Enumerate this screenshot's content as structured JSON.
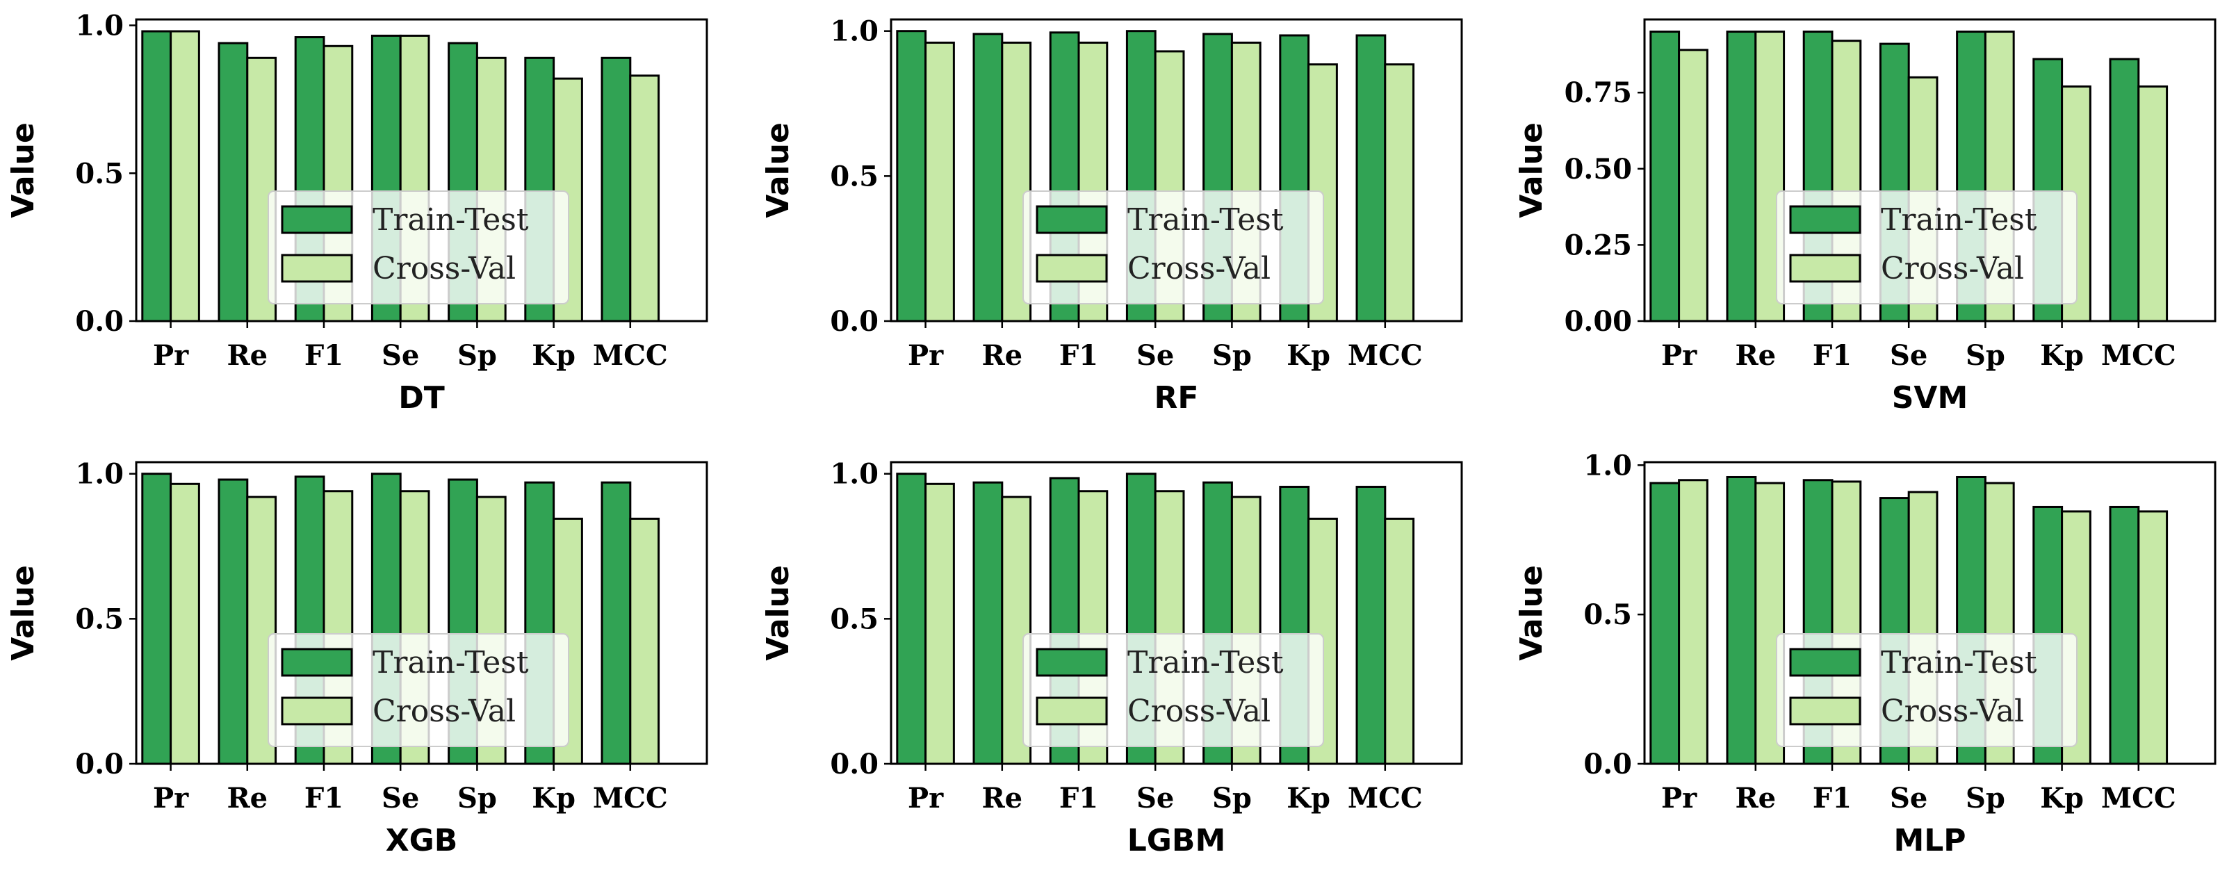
{
  "chart_data": [
    {
      "type": "bar",
      "title": "",
      "xlabel": "DT",
      "ylabel": "Value",
      "categories": [
        "Pr",
        "Re",
        "F1",
        "Se",
        "Sp",
        "Kp",
        "MCC"
      ],
      "series": [
        {
          "name": "Train-Test",
          "values": [
            0.98,
            0.94,
            0.96,
            0.965,
            0.94,
            0.89,
            0.89
          ]
        },
        {
          "name": "Cross-Val",
          "values": [
            0.98,
            0.89,
            0.93,
            0.965,
            0.89,
            0.82,
            0.83
          ]
        }
      ],
      "ylim": [
        0,
        1.02
      ],
      "yticks": [
        "0.0",
        "0.5",
        "1.0"
      ],
      "ytick_values": [
        0,
        0.5,
        1.0
      ],
      "legend": "lower-center"
    },
    {
      "type": "bar",
      "title": "",
      "xlabel": "RF",
      "ylabel": "Value",
      "categories": [
        "Pr",
        "Re",
        "F1",
        "Se",
        "Sp",
        "Kp",
        "MCC"
      ],
      "series": [
        {
          "name": "Train-Test",
          "values": [
            1.0,
            0.99,
            0.995,
            1.0,
            0.99,
            0.985,
            0.985
          ]
        },
        {
          "name": "Cross-Val",
          "values": [
            0.96,
            0.96,
            0.96,
            0.93,
            0.96,
            0.885,
            0.885
          ]
        }
      ],
      "ylim": [
        0,
        1.04
      ],
      "yticks": [
        "0.0",
        "0.5",
        "1.0"
      ],
      "ytick_values": [
        0,
        0.5,
        1.0
      ],
      "legend": "lower-center"
    },
    {
      "type": "bar",
      "title": "",
      "xlabel": "SVM",
      "ylabel": "Value",
      "categories": [
        "Pr",
        "Re",
        "F1",
        "Se",
        "Sp",
        "Kp",
        "MCC"
      ],
      "series": [
        {
          "name": "Train-Test",
          "values": [
            0.95,
            0.95,
            0.95,
            0.91,
            0.95,
            0.86,
            0.86
          ]
        },
        {
          "name": "Cross-Val",
          "values": [
            0.89,
            0.95,
            0.92,
            0.8,
            0.95,
            0.77,
            0.77
          ]
        }
      ],
      "ylim": [
        0,
        0.99
      ],
      "yticks": [
        "0.00",
        "0.25",
        "0.50",
        "0.75"
      ],
      "ytick_values": [
        0,
        0.25,
        0.5,
        0.75
      ],
      "legend": "lower-center"
    },
    {
      "type": "bar",
      "title": "",
      "xlabel": "XGB",
      "ylabel": "Value",
      "categories": [
        "Pr",
        "Re",
        "F1",
        "Se",
        "Sp",
        "Kp",
        "MCC"
      ],
      "series": [
        {
          "name": "Train-Test",
          "values": [
            1.0,
            0.98,
            0.99,
            1.0,
            0.98,
            0.97,
            0.97
          ]
        },
        {
          "name": "Cross-Val",
          "values": [
            0.965,
            0.92,
            0.94,
            0.94,
            0.92,
            0.845,
            0.845
          ]
        }
      ],
      "ylim": [
        0,
        1.04
      ],
      "yticks": [
        "0.0",
        "0.5",
        "1.0"
      ],
      "ytick_values": [
        0,
        0.5,
        1.0
      ],
      "legend": "lower-center"
    },
    {
      "type": "bar",
      "title": "",
      "xlabel": "LGBM",
      "ylabel": "Value",
      "categories": [
        "Pr",
        "Re",
        "F1",
        "Se",
        "Sp",
        "Kp",
        "MCC"
      ],
      "series": [
        {
          "name": "Train-Test",
          "values": [
            1.0,
            0.97,
            0.985,
            1.0,
            0.97,
            0.955,
            0.955
          ]
        },
        {
          "name": "Cross-Val",
          "values": [
            0.965,
            0.92,
            0.94,
            0.94,
            0.92,
            0.845,
            0.845
          ]
        }
      ],
      "ylim": [
        0,
        1.04
      ],
      "yticks": [
        "0.0",
        "0.5",
        "1.0"
      ],
      "ytick_values": [
        0,
        0.5,
        1.0
      ],
      "legend": "lower-center"
    },
    {
      "type": "bar",
      "title": "",
      "xlabel": "MLP",
      "ylabel": "Value",
      "categories": [
        "Pr",
        "Re",
        "F1",
        "Se",
        "Sp",
        "Kp",
        "MCC"
      ],
      "series": [
        {
          "name": "Train-Test",
          "values": [
            0.94,
            0.96,
            0.95,
            0.89,
            0.96,
            0.86,
            0.86
          ]
        },
        {
          "name": "Cross-Val",
          "values": [
            0.95,
            0.94,
            0.945,
            0.91,
            0.94,
            0.845,
            0.845
          ]
        }
      ],
      "ylim": [
        0,
        1.01
      ],
      "yticks": [
        "0.0",
        "0.5",
        "1.0"
      ],
      "ytick_values": [
        0,
        0.5,
        1.0
      ],
      "legend": "lower-center"
    }
  ],
  "colors": {
    "train_test": "#31a354",
    "cross_val": "#c7e9a7",
    "edge": "#000000"
  }
}
